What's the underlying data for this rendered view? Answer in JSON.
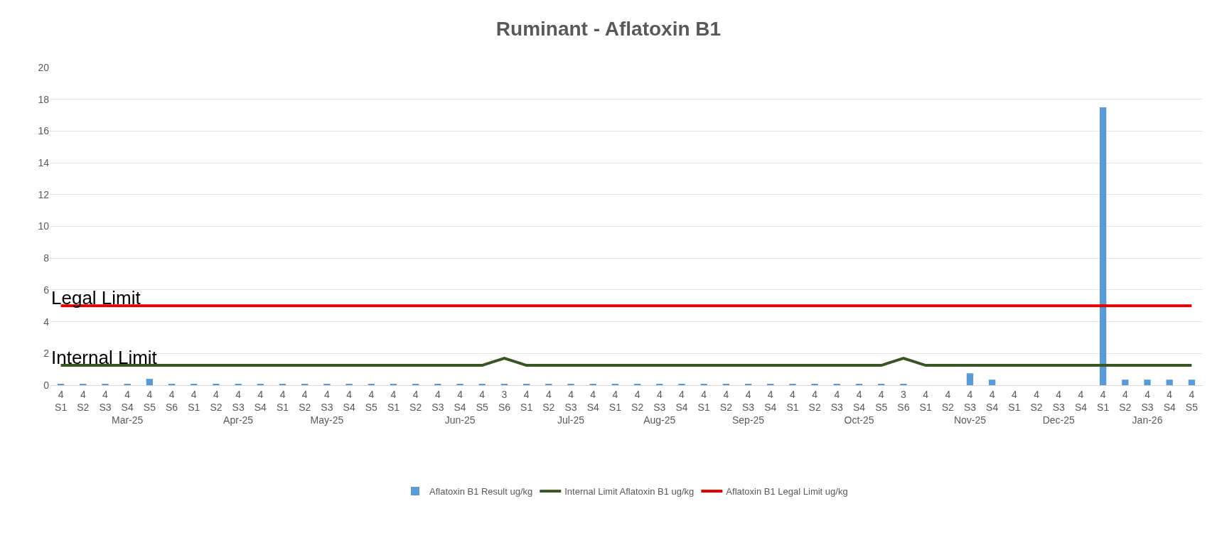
{
  "chart_data": {
    "type": "bar",
    "title": "Ruminant - Aflatoxin B1",
    "categories": [
      "4\nS1",
      "4\nS2",
      "4\nS3",
      "4\nS4\nMar-25",
      "4\nS5",
      "4\nS6",
      "4\nS1",
      "4\nS2",
      "4\nS3\nApr-25",
      "4\nS4",
      "4\nS1",
      "4\nS2",
      "4\nS3\nMay-25",
      "4\nS4",
      "4\nS5",
      "4\nS1",
      "4\nS2",
      "4\nS3",
      "4\nS4\nJun-25",
      "4\nS5",
      "3\nS6",
      "4\nS1",
      "4\nS2",
      "4\nS3\nJul-25",
      "4\nS4",
      "4\nS1",
      "4\nS2",
      "4\nS3\nAug-25",
      "4\nS4",
      "4\nS1",
      "4\nS2",
      "4\nS3\nSep-25",
      "4\nS4",
      "4\nS1",
      "4\nS2",
      "4\nS3",
      "4\nS4\nOct-25",
      "4\nS5",
      "3\nS6",
      "4\nS1",
      "4\nS2",
      "4\nS3\nNov-25",
      "4\nS4",
      "4\nS1",
      "4\nS2",
      "4\nS3\nDec-25",
      "4\nS4",
      "4\nS1",
      "4\nS2",
      "4\nS3\nJan-26",
      "4\nS4",
      "4\nS5"
    ],
    "ylim": [
      0,
      20
    ],
    "yticks": [
      0,
      2,
      4,
      6,
      8,
      10,
      12,
      14,
      16,
      18,
      20
    ],
    "grid": "y",
    "legend": "bottom",
    "series": [
      {
        "name": "Aflatoxin B1 Result ug/kg",
        "color": "#5b9bd5",
        "values": [
          0.05,
          0.05,
          0.05,
          0.05,
          0.4,
          0.05,
          0.05,
          0.05,
          0.05,
          0.05,
          0.05,
          0.05,
          0.05,
          0.05,
          0.05,
          0.05,
          0.05,
          0.05,
          0.05,
          0.05,
          0.05,
          0.05,
          0.05,
          0.05,
          0.05,
          0.05,
          0.05,
          0.05,
          0.05,
          0.05,
          0.05,
          0.05,
          0.05,
          0.05,
          0.05,
          0.05,
          0.05,
          0.05,
          0.05,
          null,
          null,
          0.75,
          0.35,
          null,
          null,
          null,
          null,
          17.5,
          0.35,
          0.35,
          0.35,
          0.35
        ]
      },
      {
        "name": "Internal Limit Aflatoxin B1 ug/kg",
        "type": "line",
        "color": "#375623",
        "values": [
          1.25,
          1.25,
          1.25,
          1.25,
          1.25,
          1.25,
          1.25,
          1.25,
          1.25,
          1.25,
          1.25,
          1.25,
          1.25,
          1.25,
          1.25,
          1.25,
          1.25,
          1.25,
          1.25,
          1.25,
          1.7,
          1.25,
          1.25,
          1.25,
          1.25,
          1.25,
          1.25,
          1.25,
          1.25,
          1.25,
          1.25,
          1.25,
          1.25,
          1.25,
          1.25,
          1.25,
          1.25,
          1.25,
          1.7,
          1.25,
          1.25,
          1.25,
          1.25,
          1.25,
          1.25,
          1.25,
          1.25,
          1.25,
          1.25,
          1.25,
          1.25,
          1.25
        ]
      },
      {
        "name": "Aflatoxin B1 Legal Limit ug/kg",
        "type": "line",
        "color": "#e00000",
        "values": [
          5,
          5,
          5,
          5,
          5,
          5,
          5,
          5,
          5,
          5,
          5,
          5,
          5,
          5,
          5,
          5,
          5,
          5,
          5,
          5,
          5,
          5,
          5,
          5,
          5,
          5,
          5,
          5,
          5,
          5,
          5,
          5,
          5,
          5,
          5,
          5,
          5,
          5,
          5,
          5,
          5,
          5,
          5,
          5,
          5,
          5,
          5,
          5,
          5,
          5,
          5,
          5
        ]
      }
    ],
    "annotations": [
      {
        "text": "Legal Limit",
        "y": 5
      },
      {
        "text": "Internal Limit",
        "y": 1.25
      }
    ]
  }
}
